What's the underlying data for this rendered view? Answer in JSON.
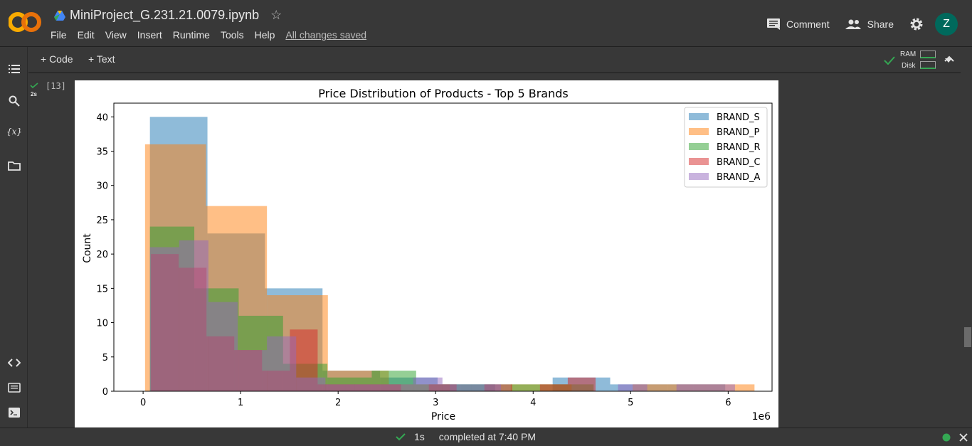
{
  "app": {
    "title": "MiniProject_G.231.21.0079.ipynb",
    "menu": [
      "File",
      "Edit",
      "View",
      "Insert",
      "Runtime",
      "Tools",
      "Help"
    ],
    "save_status": "All changes saved",
    "comment_label": "Comment",
    "share_label": "Share",
    "avatar_letter": "Z"
  },
  "toolbar": {
    "code_label": "+ Code",
    "text_label": "+ Text",
    "ram_label": "RAM",
    "disk_label": "Disk"
  },
  "cell": {
    "exec_count": "[13]",
    "duration": "2s"
  },
  "status": {
    "time": "1s",
    "message": "completed at 7:40 PM"
  },
  "colors": {
    "brand_s": "#1f77b4",
    "brand_p": "#ff7f0e",
    "brand_r": "#2ca02c",
    "brand_c": "#d62728",
    "brand_a": "#9467bd",
    "accent_green": "#34a853"
  },
  "chart_data": {
    "type": "bar",
    "title": "Price Distribution of Products - Top 5 Brands",
    "xlabel": "Price",
    "ylabel": "Count",
    "x_offset_label": "1e6",
    "xlim": [
      -300000,
      6450000
    ],
    "ylim": [
      0,
      42
    ],
    "x_ticks": [
      0,
      1,
      2,
      3,
      4,
      5,
      6
    ],
    "y_ticks": [
      0,
      5,
      10,
      15,
      20,
      25,
      30,
      35,
      40
    ],
    "legend": "top-right",
    "series": [
      {
        "name": "BRAND_S",
        "color": "#1f77b4",
        "bin_width": 590000,
        "bins": [
          [
            70000,
            40
          ],
          [
            660000,
            23
          ],
          [
            1250000,
            15
          ],
          [
            1840000,
            3
          ],
          [
            2430000,
            2
          ],
          [
            3020000,
            1
          ],
          [
            3610000,
            0
          ],
          [
            4200000,
            2
          ],
          [
            4790000,
            1
          ],
          [
            5380000,
            1
          ]
        ]
      },
      {
        "name": "BRAND_P",
        "color": "#ff7f0e",
        "bin_width": 625000,
        "bins": [
          [
            20000,
            36
          ],
          [
            645000,
            27
          ],
          [
            1270000,
            14
          ],
          [
            1895000,
            3
          ],
          [
            2520000,
            1
          ],
          [
            3145000,
            0
          ],
          [
            3770000,
            1
          ],
          [
            4395000,
            0
          ],
          [
            5020000,
            1
          ],
          [
            5645000,
            1
          ]
        ]
      },
      {
        "name": "BRAND_R",
        "color": "#2ca02c",
        "bin_width": 455000,
        "bins": [
          [
            70000,
            24
          ],
          [
            525000,
            15
          ],
          [
            980000,
            11
          ],
          [
            1435000,
            4
          ],
          [
            1890000,
            2
          ],
          [
            2345000,
            3
          ],
          [
            2800000,
            1
          ],
          [
            3255000,
            1
          ],
          [
            3710000,
            1
          ],
          [
            4165000,
            1
          ]
        ]
      },
      {
        "name": "BRAND_C",
        "color": "#d62728",
        "bin_width": 285000,
        "bins": [
          [
            80000,
            20
          ],
          [
            365000,
            18
          ],
          [
            650000,
            8
          ],
          [
            935000,
            6
          ],
          [
            1220000,
            3
          ],
          [
            1505000,
            9
          ],
          [
            1790000,
            1
          ],
          [
            2075000,
            1
          ],
          [
            2360000,
            1
          ],
          [
            2645000,
            0
          ],
          [
            2930000,
            1
          ],
          [
            3215000,
            0
          ],
          [
            3500000,
            1
          ],
          [
            3785000,
            0
          ],
          [
            4070000,
            1
          ],
          [
            4355000,
            2
          ]
        ]
      },
      {
        "name": "BRAND_A",
        "color": "#9467bd",
        "bin_width": 300000,
        "bins": [
          [
            70000,
            21
          ],
          [
            370000,
            22
          ],
          [
            670000,
            13
          ],
          [
            970000,
            6
          ],
          [
            1270000,
            8
          ],
          [
            1570000,
            2
          ],
          [
            1870000,
            1
          ],
          [
            2170000,
            1
          ],
          [
            2470000,
            1
          ],
          [
            2770000,
            2
          ],
          [
            3070000,
            1
          ],
          [
            3370000,
            1
          ],
          [
            3670000,
            0
          ],
          [
            3970000,
            0
          ],
          [
            4270000,
            0
          ],
          [
            4570000,
            0
          ],
          [
            4870000,
            1
          ],
          [
            5170000,
            0
          ],
          [
            5470000,
            1
          ],
          [
            5770000,
            1
          ]
        ]
      }
    ]
  }
}
